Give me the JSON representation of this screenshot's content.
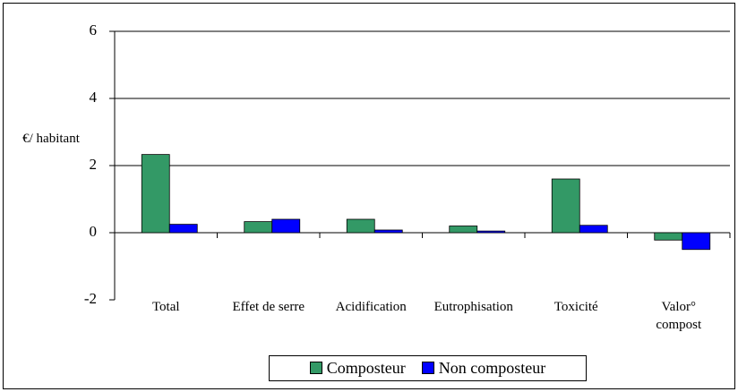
{
  "chart_data": {
    "type": "bar",
    "y_label": "€/ habitant",
    "categories": [
      "Total",
      "Effet de serre",
      "Acidification",
      "Eutrophisation",
      "Toxicité",
      "Valor° compost"
    ],
    "series": [
      {
        "name": "Composteur",
        "color": "#339966",
        "values": [
          2.33,
          0.33,
          0.4,
          0.2,
          1.6,
          -0.22
        ]
      },
      {
        "name": "Non composteur",
        "color": "#0000ff",
        "values": [
          0.25,
          0.4,
          0.08,
          0.05,
          0.22,
          -0.5
        ]
      }
    ],
    "ylim": [
      -2,
      6
    ],
    "yticks": [
      -2,
      0,
      2,
      4,
      6
    ],
    "grid": true,
    "legend": "bottom"
  }
}
